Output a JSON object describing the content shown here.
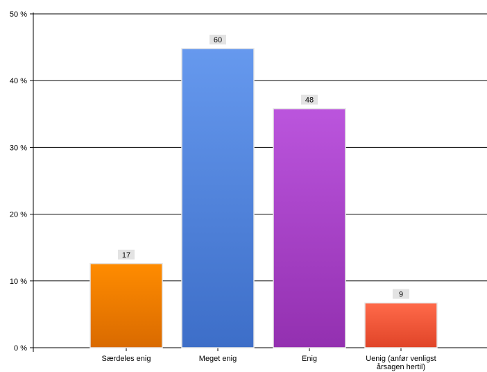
{
  "chart_data": {
    "type": "bar",
    "title": "",
    "xlabel": "",
    "ylabel": "",
    "ylim": [
      0,
      50
    ],
    "y_ticks": [
      0,
      10,
      20,
      30,
      40,
      50
    ],
    "y_tick_labels": [
      "0 %",
      "10 %",
      "20 %",
      "30 %",
      "40 %",
      "50 %"
    ],
    "grid": true,
    "legend": "none",
    "categories": [
      "Særdeles enig",
      "Meget enig",
      "Enig",
      "Uenig (anfør venligst årsagen hertil)"
    ],
    "category_label_lines": [
      [
        "Særdeles enig"
      ],
      [
        "Meget enig"
      ],
      [
        "Enig"
      ],
      [
        "Uenig (anfør venligst",
        "årsagen hertil)"
      ]
    ],
    "values_percent": [
      12.6,
      44.8,
      35.8,
      6.7
    ],
    "counts": [
      17,
      60,
      48,
      9
    ],
    "data_labels": [
      "17",
      "60",
      "48",
      "9"
    ],
    "colors": [
      {
        "top": "#ff8c00",
        "bottom": "#d96a00"
      },
      {
        "top": "#6699ee",
        "bottom": "#3d6ec8"
      },
      {
        "top": "#bb55dd",
        "bottom": "#9330b0"
      },
      {
        "top": "#ff6a4a",
        "bottom": "#e04428"
      }
    ]
  }
}
